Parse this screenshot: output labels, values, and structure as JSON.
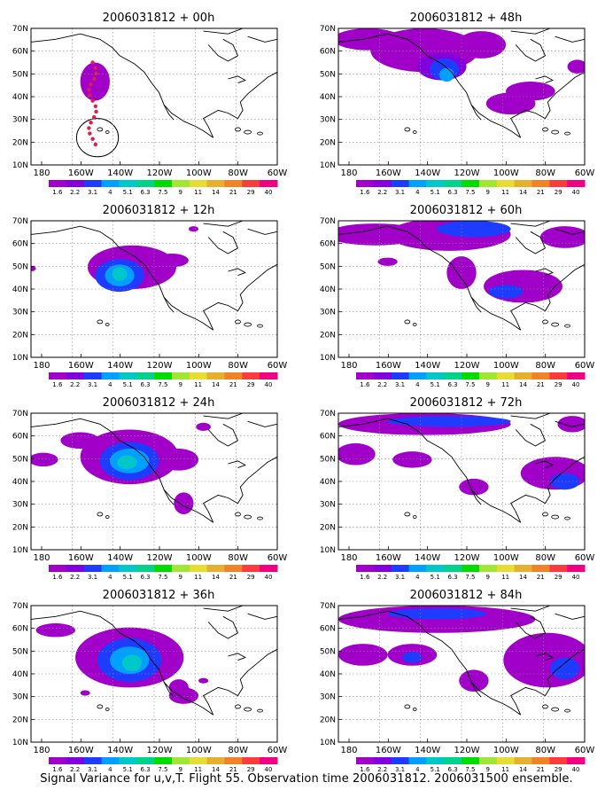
{
  "caption": "Signal Variance for u,v,T. Flight 55. Observation time 2006031812. 2006031500 ensemble.",
  "lat_labels": [
    "70N",
    "60N",
    "50N",
    "40N",
    "30N",
    "20N",
    "10N"
  ],
  "lon_labels": [
    "180",
    "160W",
    "140W",
    "120W",
    "100W",
    "80W",
    "60W"
  ],
  "colorbar": {
    "labels": [
      "1.6",
      "2.2",
      "3.1",
      "4",
      "5.1",
      "6.3",
      "7.5",
      "9",
      "11",
      "14",
      "21",
      "29",
      "40"
    ],
    "colors": [
      "#a000c8",
      "#8200dc",
      "#1e3cff",
      "#00a0ff",
      "#00c8c8",
      "#00d28c",
      "#00dc00",
      "#a0e632",
      "#e6dc32",
      "#e6af2d",
      "#f08228",
      "#fa3c3c",
      "#f00082"
    ]
  },
  "panels": [
    {
      "title": "2006031812 + 00h"
    },
    {
      "title": "2006031812 + 48h"
    },
    {
      "title": "2006031812 + 12h"
    },
    {
      "title": "2006031812 + 60h"
    },
    {
      "title": "2006031812 + 24h"
    },
    {
      "title": "2006031812 + 72h"
    },
    {
      "title": "2006031812 + 36h"
    },
    {
      "title": "2006031812 + 84h"
    }
  ]
}
